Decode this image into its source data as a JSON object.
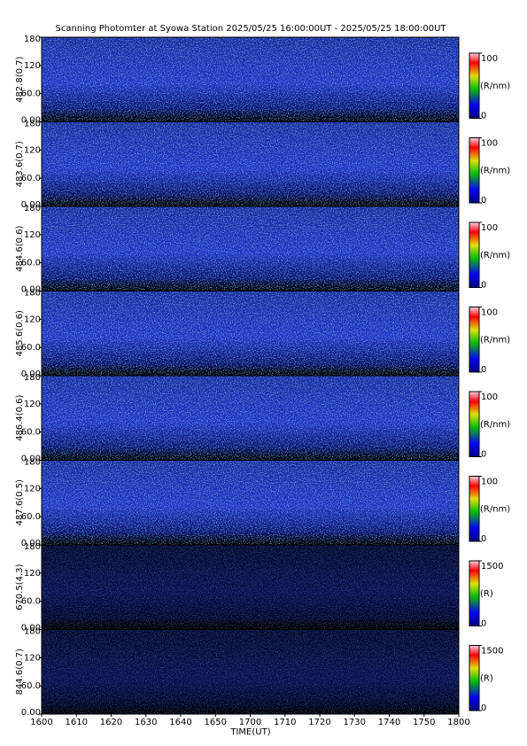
{
  "chart_data": {
    "type": "heatmap",
    "title": "Scanning Photomter at Syowa Station 2025/05/25 16:00:00UT - 2025/05/25 18:00:00UT",
    "xlabel": "TIME(UT)",
    "xticks": [
      "1600",
      "1610",
      "1620",
      "1630",
      "1640",
      "1650",
      "1700",
      "1710",
      "1720",
      "1730",
      "1740",
      "1750",
      "1800"
    ],
    "panels": [
      {
        "ylabel": "482.8(0.7)",
        "ylim": [
          0,
          180
        ],
        "yticks": [
          {
            "value": 0,
            "label": "0.00"
          },
          {
            "value": 60,
            "label": "60.0"
          },
          120,
          180
        ],
        "colorbar": {
          "lim": [
            0,
            100
          ],
          "ticks": [
            0,
            100
          ],
          "unit": "(R/nm)"
        }
      },
      {
        "ylabel": "483.6(0.7)",
        "ylim": [
          0,
          180
        ],
        "yticks": [
          {
            "value": 0,
            "label": "0.00"
          },
          {
            "value": 60,
            "label": "60.0"
          },
          120,
          180
        ],
        "colorbar": {
          "lim": [
            0,
            100
          ],
          "ticks": [
            0,
            100
          ],
          "unit": "(R/nm)"
        }
      },
      {
        "ylabel": "484.6(0.6)",
        "ylim": [
          0,
          180
        ],
        "yticks": [
          {
            "value": 0,
            "label": "0.00"
          },
          {
            "value": 60,
            "label": "60.0"
          },
          120,
          180
        ],
        "colorbar": {
          "lim": [
            0,
            100
          ],
          "ticks": [
            0,
            100
          ],
          "unit": "(R/nm)"
        }
      },
      {
        "ylabel": "485.6(0.6)",
        "ylim": [
          0,
          180
        ],
        "yticks": [
          {
            "value": 0,
            "label": "0.00"
          },
          {
            "value": 60,
            "label": "60.0"
          },
          120,
          180
        ],
        "colorbar": {
          "lim": [
            0,
            100
          ],
          "ticks": [
            0,
            100
          ],
          "unit": "(R/nm)"
        }
      },
      {
        "ylabel": "486.4(0.6)",
        "ylim": [
          0,
          180
        ],
        "yticks": [
          {
            "value": 0,
            "label": "0.00"
          },
          {
            "value": 60,
            "label": "60.0"
          },
          120,
          180
        ],
        "colorbar": {
          "lim": [
            0,
            100
          ],
          "ticks": [
            0,
            100
          ],
          "unit": "(R/nm)"
        }
      },
      {
        "ylabel": "487.6(0.5)",
        "ylim": [
          0,
          180
        ],
        "yticks": [
          {
            "value": 0,
            "label": "0.00"
          },
          {
            "value": 60,
            "label": "60.0"
          },
          120,
          180
        ],
        "colorbar": {
          "lim": [
            0,
            100
          ],
          "ticks": [
            0,
            100
          ],
          "unit": "(R/nm)"
        }
      },
      {
        "ylabel": "670.5(4.3)",
        "ylim": [
          0,
          180
        ],
        "yticks": [
          {
            "value": 0,
            "label": "0.00"
          },
          {
            "value": 60,
            "label": "60.0"
          },
          120,
          180
        ],
        "colorbar": {
          "lim": [
            0,
            1500
          ],
          "ticks": [
            0,
            1500
          ],
          "unit": "(R)"
        }
      },
      {
        "ylabel": "844.6(0.7)",
        "ylim": [
          0,
          180
        ],
        "yticks": [
          {
            "value": 0,
            "label": "0.00"
          },
          {
            "value": 60,
            "label": "60.0"
          },
          120,
          180
        ],
        "colorbar": {
          "lim": [
            0,
            1500
          ],
          "ticks": [
            0,
            1500
          ],
          "unit": "(R)"
        }
      }
    ]
  }
}
